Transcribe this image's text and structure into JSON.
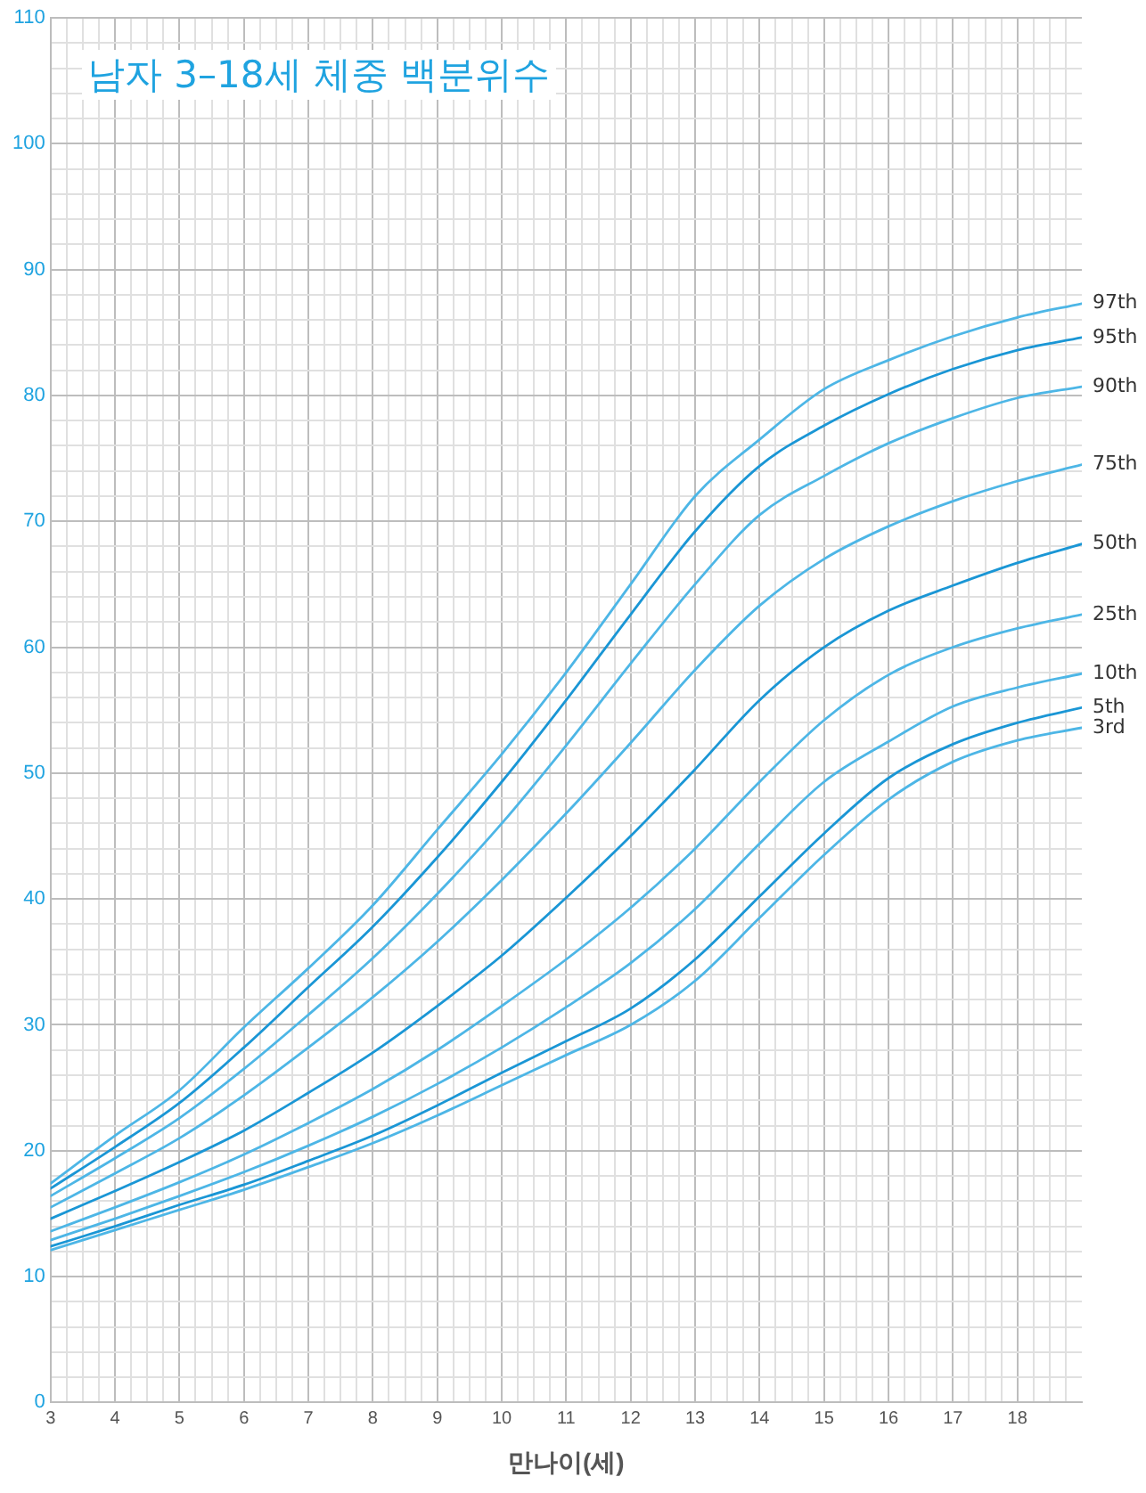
{
  "chart_data": {
    "type": "line",
    "title": "남자 3–18세 체중 백분위수",
    "xlabel": "만나이(세)",
    "x": [
      3,
      4,
      5,
      6,
      7,
      8,
      9,
      10,
      11,
      12,
      13,
      14,
      15,
      16,
      17,
      18,
      19
    ],
    "series": [
      {
        "name": "97th",
        "color": "#4db6e6",
        "values": [
          17.4,
          21.2,
          24.8,
          29.8,
          34.5,
          39.5,
          45.5,
          51.5,
          58.0,
          65.0,
          72.0,
          76.5,
          80.5,
          82.8,
          84.7,
          86.2,
          87.3
        ]
      },
      {
        "name": "95th",
        "color": "#1a96d5",
        "values": [
          17.0,
          20.3,
          23.8,
          28.2,
          33.0,
          37.8,
          43.3,
          49.3,
          55.8,
          62.6,
          69.2,
          74.4,
          77.6,
          80.1,
          82.1,
          83.6,
          84.6
        ]
      },
      {
        "name": "90th",
        "color": "#4db6e6",
        "values": [
          16.4,
          19.4,
          22.6,
          26.5,
          30.8,
          35.3,
          40.4,
          46.0,
          52.2,
          58.7,
          65.0,
          70.5,
          73.6,
          76.2,
          78.2,
          79.8,
          80.7
        ]
      },
      {
        "name": "75th",
        "color": "#4db6e6",
        "values": [
          15.5,
          18.2,
          21.0,
          24.4,
          28.2,
          32.2,
          36.6,
          41.5,
          46.8,
          52.4,
          58.2,
          63.3,
          67.0,
          69.6,
          71.6,
          73.2,
          74.5
        ]
      },
      {
        "name": "50th",
        "color": "#1a96d5",
        "values": [
          14.6,
          16.8,
          19.1,
          21.6,
          24.6,
          27.8,
          31.5,
          35.5,
          40.1,
          45.0,
          50.3,
          55.8,
          60.0,
          62.9,
          64.9,
          66.7,
          68.2
        ]
      },
      {
        "name": "25th",
        "color": "#4db6e6",
        "values": [
          13.6,
          15.5,
          17.5,
          19.7,
          22.2,
          24.9,
          28.0,
          31.5,
          35.2,
          39.3,
          44.0,
          49.3,
          54.2,
          57.8,
          60.0,
          61.5,
          62.6
        ]
      },
      {
        "name": "10th",
        "color": "#4db6e6",
        "values": [
          12.9,
          14.6,
          16.4,
          18.3,
          20.4,
          22.7,
          25.3,
          28.2,
          31.4,
          34.9,
          39.2,
          44.4,
          49.3,
          52.5,
          55.3,
          56.8,
          57.9
        ]
      },
      {
        "name": "5th",
        "color": "#1a96d5",
        "values": [
          12.4,
          14.0,
          15.7,
          17.3,
          19.2,
          21.2,
          23.6,
          26.2,
          28.7,
          31.3,
          35.2,
          40.2,
          45.2,
          49.6,
          52.3,
          54.0,
          55.2
        ]
      },
      {
        "name": "3rd",
        "color": "#4db6e6",
        "values": [
          12.1,
          13.7,
          15.3,
          16.9,
          18.7,
          20.6,
          22.8,
          25.2,
          27.6,
          30.0,
          33.5,
          38.5,
          43.5,
          47.9,
          50.9,
          52.6,
          53.6
        ]
      }
    ],
    "xlim": [
      3,
      19
    ],
    "xticks": [
      3,
      {
        "value": 3.25,
        "label": null
      },
      {
        "value": 3.5,
        "label": null
      },
      {
        "value": 3.75,
        "label": null
      },
      4,
      {
        "value": 4.25,
        "label": null
      },
      {
        "value": 4.5,
        "label": null
      },
      {
        "value": 4.75,
        "label": null
      },
      5,
      {
        "value": 5.25,
        "label": null
      },
      {
        "value": 5.5,
        "label": null
      },
      {
        "value": 5.75,
        "label": null
      },
      6,
      {
        "value": 6.25,
        "label": null
      },
      {
        "value": 6.5,
        "label": null
      },
      {
        "value": 6.75,
        "label": null
      },
      7,
      {
        "value": 7.25,
        "label": null
      },
      {
        "value": 7.5,
        "label": null
      },
      {
        "value": 7.75,
        "label": null
      },
      8,
      {
        "value": 8.25,
        "label": null
      },
      {
        "value": 8.5,
        "label": null
      },
      {
        "value": 8.75,
        "label": null
      },
      9,
      {
        "value": 9.25,
        "label": null
      },
      {
        "value": 9.5,
        "label": null
      },
      {
        "value": 9.75,
        "label": null
      },
      10,
      {
        "value": 10.25,
        "label": null
      },
      {
        "value": 10.5,
        "label": null
      },
      {
        "value": 10.75,
        "label": null
      },
      11,
      {
        "value": 11.25,
        "label": null
      },
      {
        "value": 11.5,
        "label": null
      },
      {
        "value": 11.75,
        "label": null
      },
      12,
      {
        "value": 12.25,
        "label": null
      },
      {
        "value": 12.5,
        "label": null
      },
      {
        "value": 12.75,
        "label": null
      },
      13,
      {
        "value": 13.25,
        "label": null
      },
      {
        "value": 13.5,
        "label": null
      },
      {
        "value": 13.75,
        "label": null
      },
      14,
      {
        "value": 14.25,
        "label": null
      },
      {
        "value": 14.5,
        "label": null
      },
      {
        "value": 14.75,
        "label": null
      },
      15,
      {
        "value": 15.25,
        "label": null
      },
      {
        "value": 15.5,
        "label": null
      },
      {
        "value": 15.75,
        "label": null
      },
      16,
      {
        "value": 16.25,
        "label": null
      },
      {
        "value": 16.5,
        "label": null
      },
      {
        "value": 16.75,
        "label": null
      },
      17,
      {
        "value": 17.25,
        "label": null
      },
      {
        "value": 17.5,
        "label": null
      },
      {
        "value": 17.75,
        "label": null
      },
      18,
      {
        "value": 18.25,
        "label": null
      },
      {
        "value": 18.5,
        "label": null
      },
      {
        "value": 18.75,
        "label": null
      }
    ],
    "ylim": [
      0,
      110
    ],
    "yticks": [
      0,
      {
        "value": 2,
        "label": null
      },
      {
        "value": 4,
        "label": null
      },
      {
        "value": 6,
        "label": null
      },
      {
        "value": 8,
        "label": null
      },
      10,
      {
        "value": 12,
        "label": null
      },
      {
        "value": 14,
        "label": null
      },
      {
        "value": 16,
        "label": null
      },
      {
        "value": 18,
        "label": null
      },
      20,
      {
        "value": 22,
        "label": null
      },
      {
        "value": 24,
        "label": null
      },
      {
        "value": 26,
        "label": null
      },
      {
        "value": 28,
        "label": null
      },
      30,
      {
        "value": 32,
        "label": null
      },
      {
        "value": 34,
        "label": null
      },
      {
        "value": 36,
        "label": null
      },
      {
        "value": 38,
        "label": null
      },
      40,
      {
        "value": 42,
        "label": null
      },
      {
        "value": 44,
        "label": null
      },
      {
        "value": 46,
        "label": null
      },
      {
        "value": 48,
        "label": null
      },
      50,
      {
        "value": 52,
        "label": null
      },
      {
        "value": 54,
        "label": null
      },
      {
        "value": 56,
        "label": null
      },
      {
        "value": 58,
        "label": null
      },
      60,
      {
        "value": 62,
        "label": null
      },
      {
        "value": 64,
        "label": null
      },
      {
        "value": 66,
        "label": null
      },
      {
        "value": 68,
        "label": null
      },
      70,
      {
        "value": 72,
        "label": null
      },
      {
        "value": 74,
        "label": null
      },
      {
        "value": 76,
        "label": null
      },
      {
        "value": 78,
        "label": null
      },
      80,
      {
        "value": 82,
        "label": null
      },
      {
        "value": 84,
        "label": null
      },
      {
        "value": 86,
        "label": null
      },
      {
        "value": 88,
        "label": null
      },
      90,
      {
        "value": 92,
        "label": null
      },
      {
        "value": 94,
        "label": null
      },
      {
        "value": 96,
        "label": null
      },
      {
        "value": 98,
        "label": null
      },
      100,
      {
        "value": 102,
        "label": null
      },
      {
        "value": 104,
        "label": null
      },
      {
        "value": 106,
        "label": null
      },
      {
        "value": 108,
        "label": null
      },
      110
    ],
    "grid": true,
    "legend": false,
    "marker": "none",
    "line_style": "solid"
  }
}
